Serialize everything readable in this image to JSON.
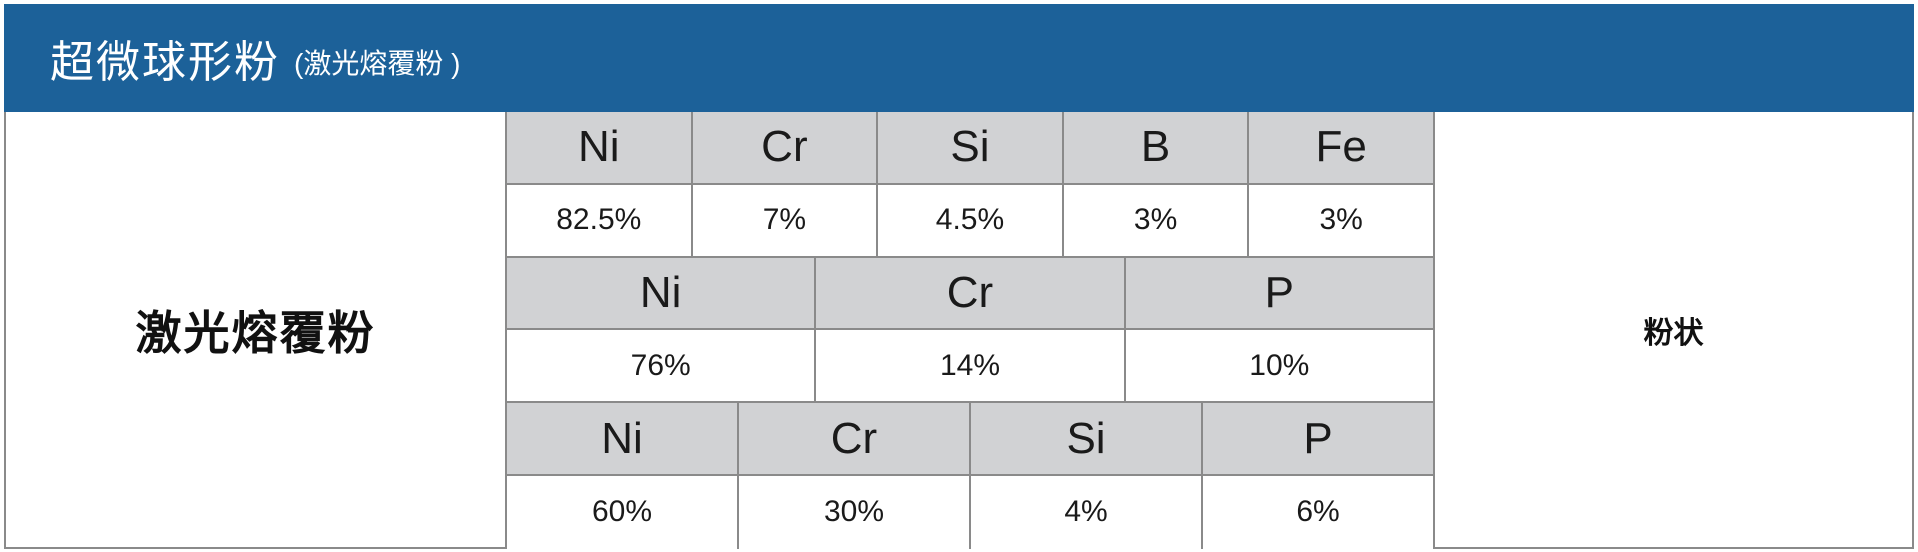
{
  "header": {
    "title": "超微球形粉",
    "subtitle": "(激光熔覆粉 )"
  },
  "product": {
    "name": "激光熔覆粉",
    "form": "粉状"
  },
  "compositions": [
    {
      "elements": [
        "Ni",
        "Cr",
        "Si",
        "B",
        "Fe"
      ],
      "values": [
        "82.5%",
        "7%",
        "4.5%",
        "3%",
        "3%"
      ]
    },
    {
      "elements": [
        "Ni",
        "Cr",
        "P"
      ],
      "values": [
        "76%",
        "14%",
        "10%"
      ]
    },
    {
      "elements": [
        "Ni",
        "Cr",
        "Si",
        "P"
      ],
      "values": [
        "60%",
        "30%",
        "4%",
        "6%"
      ]
    }
  ]
}
